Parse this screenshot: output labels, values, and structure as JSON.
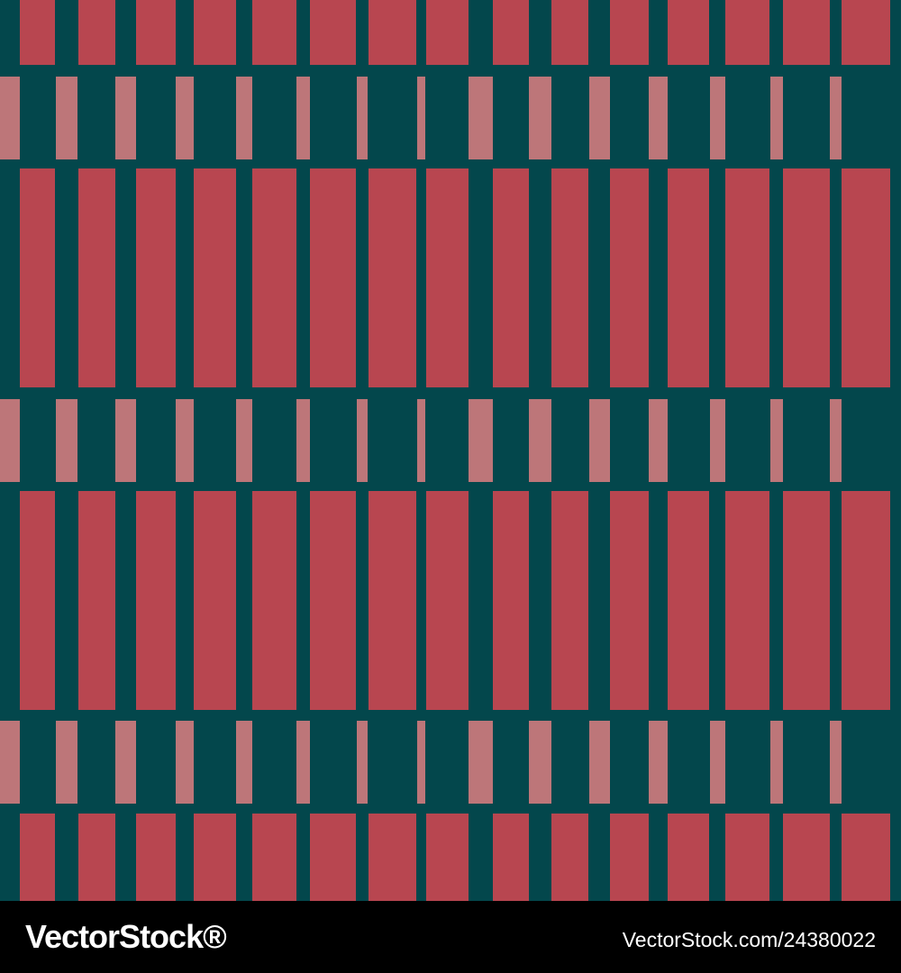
{
  "watermark": {
    "brand": "VectorStock®",
    "url": "VectorStock.com/24380022"
  }
}
